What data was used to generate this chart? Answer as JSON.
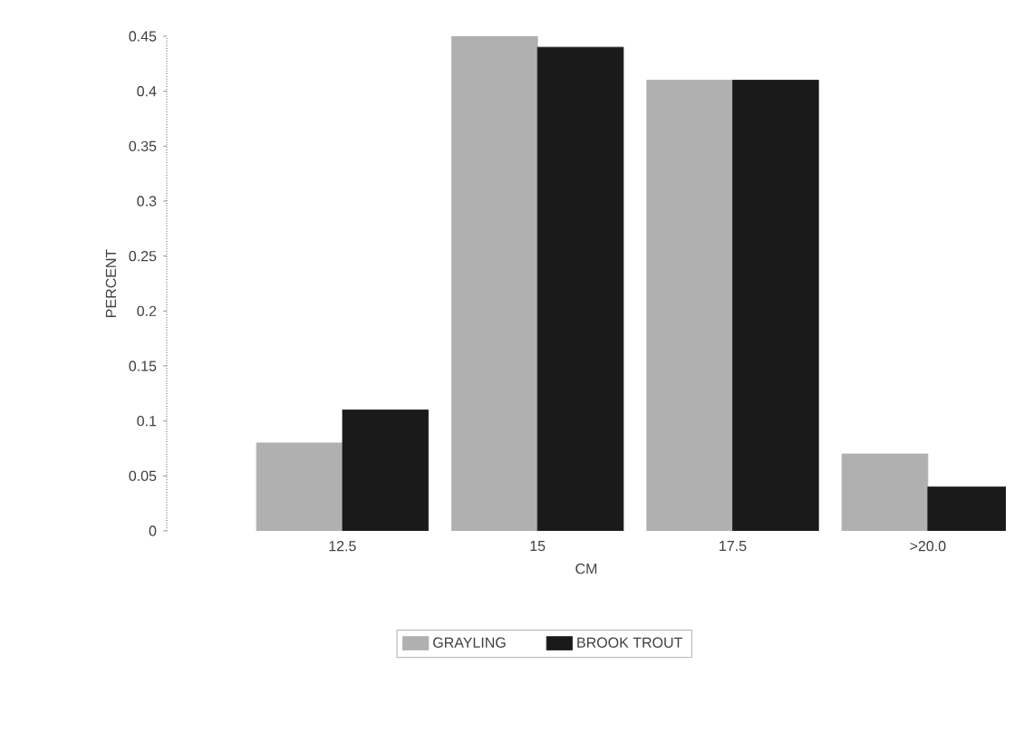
{
  "chart_data": {
    "type": "bar",
    "xlabel": "CM",
    "ylabel": "PERCENT",
    "categories": [
      "12.5",
      "15",
      "17.5",
      ">20.0"
    ],
    "series": [
      {
        "name": "GRAYLING",
        "color": "#b0b0b0",
        "values": [
          0.08,
          0.45,
          0.41,
          0.07
        ]
      },
      {
        "name": "BROOK TROUT",
        "color": "#1a1a1a",
        "values": [
          0.11,
          0.44,
          0.41,
          0.04
        ]
      }
    ],
    "ylim": [
      0,
      0.45
    ],
    "yticks": [
      0,
      0.05,
      0.1,
      0.15,
      0.2,
      0.25,
      0.3,
      0.35,
      0.4,
      0.45
    ],
    "legend": "bottom",
    "grid": false
  }
}
